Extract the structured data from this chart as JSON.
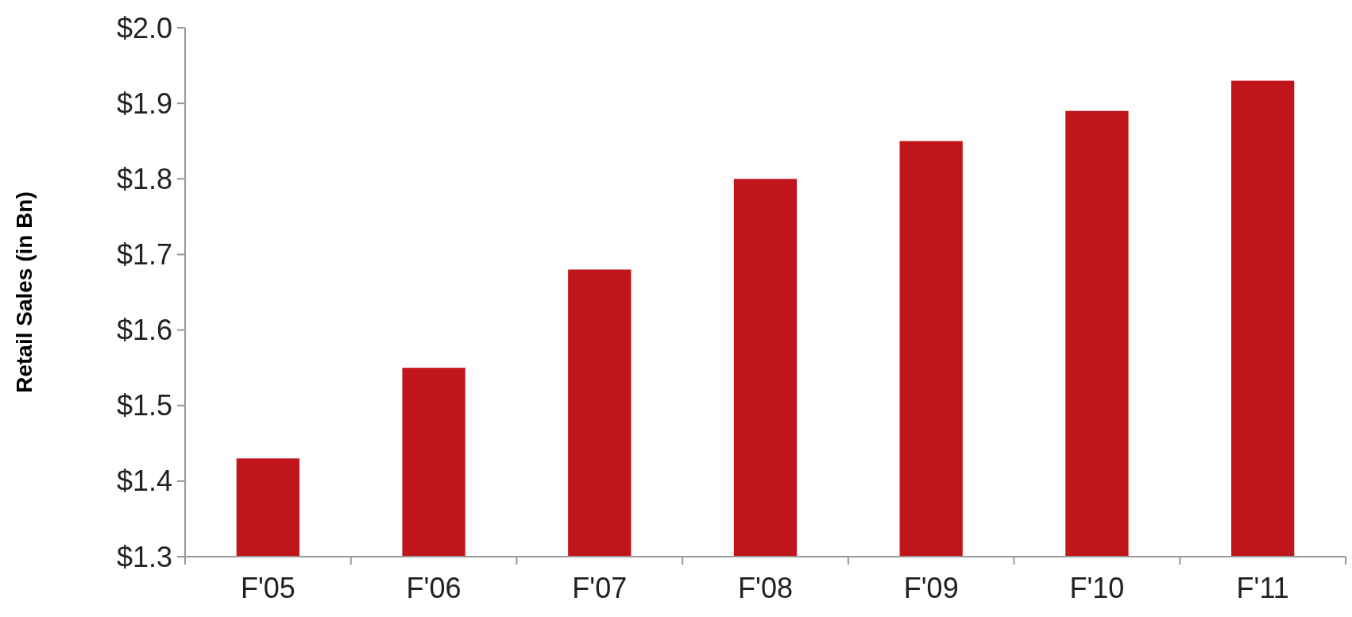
{
  "chart_data": {
    "type": "bar",
    "ylabel": "Retail Sales (in Bn)",
    "categories": [
      "F'05",
      "F'06",
      "F'07",
      "F'08",
      "F'09",
      "F'10",
      "F'11"
    ],
    "values": [
      1.43,
      1.55,
      1.68,
      1.8,
      1.85,
      1.89,
      1.93
    ],
    "color": "#c0161b",
    "ylim": [
      1.3,
      2.0
    ],
    "yticks": [
      {
        "value": 1.3,
        "label": "$1.3"
      },
      {
        "value": 1.4,
        "label": "$1.4"
      },
      {
        "value": 1.5,
        "label": "$1.5"
      },
      {
        "value": 1.6,
        "label": "$1.6"
      },
      {
        "value": 1.7,
        "label": "$1.7"
      },
      {
        "value": 1.8,
        "label": "$1.8"
      },
      {
        "value": 1.9,
        "label": "$1.9"
      },
      {
        "value": 2.0,
        "label": "$2.0"
      }
    ],
    "grid": false
  }
}
